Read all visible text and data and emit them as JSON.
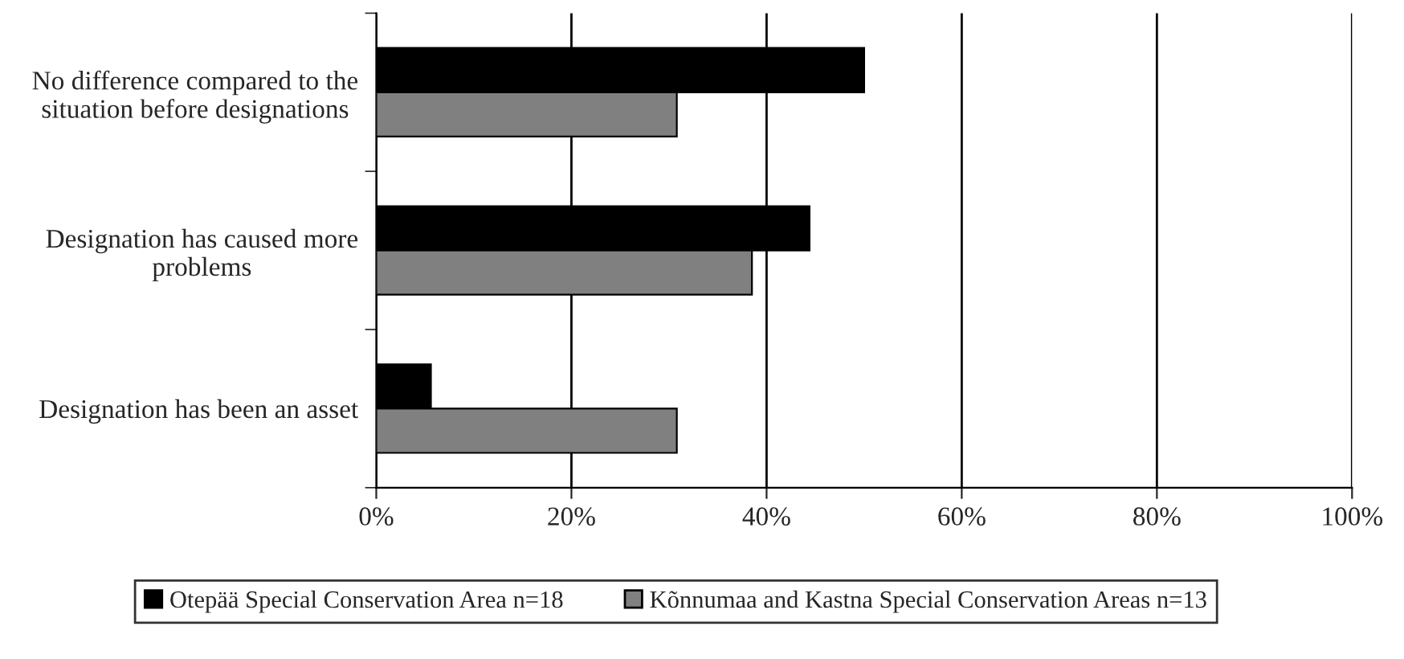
{
  "chart_data": {
    "type": "bar",
    "orientation": "horizontal",
    "categories": [
      "No difference compared to the situation before designations",
      "Designation has caused more problems",
      "Designation has been an asset"
    ],
    "series": [
      {
        "name": "Otepää Special Conservation Area n=18",
        "color": "#000000",
        "values": [
          50,
          44.4,
          5.6
        ]
      },
      {
        "name": "Kõnnumaa and Kastna Special Conservation Areas n=13",
        "color": "#808080",
        "values": [
          30.8,
          38.5,
          30.8
        ]
      }
    ],
    "xlim": [
      0,
      100
    ],
    "xticks": [
      {
        "value": 0,
        "label": "0%"
      },
      {
        "value": 20,
        "label": "20%"
      },
      {
        "value": 40,
        "label": "40%"
      },
      {
        "value": 60,
        "label": "60%"
      },
      {
        "value": 80,
        "label": "80%"
      },
      {
        "value": 100,
        "label": "100%"
      }
    ],
    "grid": "x",
    "legend": "bottom"
  }
}
